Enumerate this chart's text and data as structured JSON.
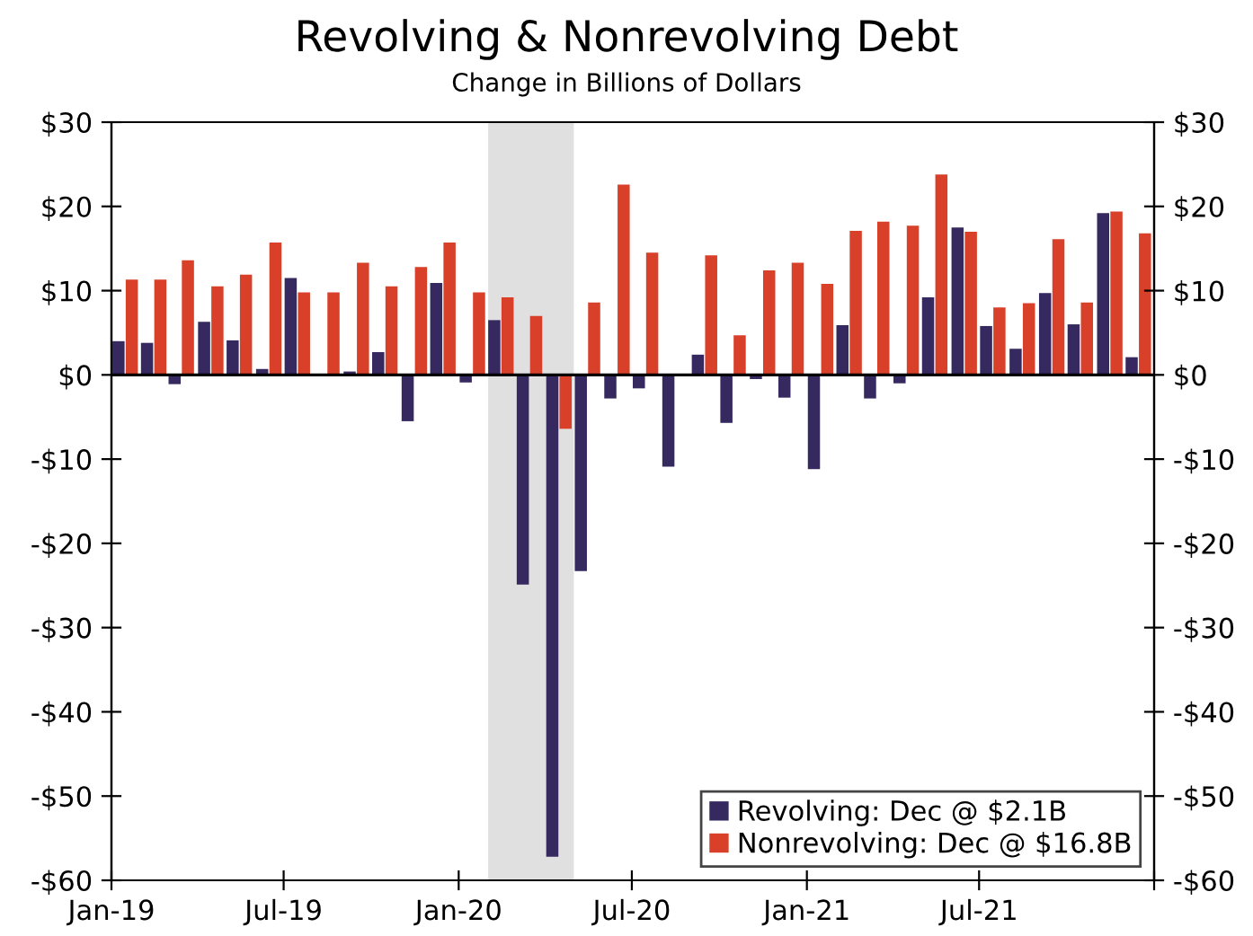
{
  "chart_data": {
    "type": "bar",
    "title": "Revolving & Nonrevolving Debt",
    "subtitle": "Change in Billions of Dollars",
    "x": [
      "2019-01-16",
      "2019-02-15",
      "2019-03-16",
      "2019-04-16",
      "2019-05-16",
      "2019-06-16",
      "2019-07-16",
      "2019-08-16",
      "2019-09-16",
      "2019-10-16",
      "2019-11-16",
      "2019-12-16",
      "2020-01-16",
      "2020-02-15",
      "2020-03-16",
      "2020-04-16",
      "2020-05-16",
      "2020-06-16",
      "2020-07-16",
      "2020-08-16",
      "2020-09-16",
      "2020-10-16",
      "2020-11-16",
      "2020-12-16",
      "2021-01-16",
      "2021-02-15",
      "2021-03-16",
      "2021-04-16",
      "2021-05-16",
      "2021-06-16",
      "2021-07-16",
      "2021-08-16",
      "2021-09-16",
      "2021-10-16",
      "2021-11-16",
      "2021-12-16"
    ],
    "series": [
      {
        "name": "Revolving: Dec @ $2.1B",
        "color": "#35295f",
        "values": [
          4.0,
          3.8,
          -1.1,
          6.3,
          4.1,
          0.7,
          11.5,
          0.1,
          0.4,
          2.7,
          -5.5,
          10.9,
          -0.9,
          6.5,
          -24.9,
          -57.2,
          -23.3,
          -2.8,
          -1.6,
          -10.9,
          2.4,
          -5.7,
          -0.5,
          -2.7,
          -11.2,
          5.9,
          -2.8,
          -1.0,
          9.2,
          17.5,
          5.8,
          3.1,
          9.7,
          6.0,
          19.2,
          2.1
        ]
      },
      {
        "name": "Nonrevolving: Dec @ $16.8B",
        "color": "#d9402a",
        "values": [
          11.3,
          11.3,
          13.6,
          10.5,
          11.9,
          15.7,
          9.8,
          9.8,
          13.3,
          10.5,
          12.8,
          15.7,
          9.8,
          9.2,
          7.0,
          -6.4,
          8.6,
          22.6,
          14.5,
          0.0,
          14.2,
          4.7,
          12.4,
          13.3,
          10.8,
          17.1,
          18.2,
          17.7,
          23.8,
          17.0,
          8.0,
          8.5,
          16.1,
          8.6,
          19.4,
          16.8
        ]
      }
    ],
    "xlim": [
      "2019-01",
      "2022-01"
    ],
    "xticks": [
      {
        "value": "2019-01",
        "label": "Jan-19"
      },
      {
        "value": "2019-07",
        "label": "Jul-19"
      },
      {
        "value": "2020-01",
        "label": "Jan-20"
      },
      {
        "value": "2020-07",
        "label": "Jul-20"
      },
      {
        "value": "2021-01",
        "label": "Jan-21"
      },
      {
        "value": "2021-07",
        "label": "Jul-21"
      },
      {
        "value": "2022-01",
        "label": null
      }
    ],
    "ylim": [
      -60,
      30
    ],
    "yticks": [
      {
        "value": -60,
        "label": "-$60"
      },
      {
        "value": -50,
        "label": "-$50"
      },
      {
        "value": -40,
        "label": "-$40"
      },
      {
        "value": -30,
        "label": "-$30"
      },
      {
        "value": -20,
        "label": "-$20"
      },
      {
        "value": -10,
        "label": "-$10"
      },
      {
        "value": 0,
        "label": "$0"
      },
      {
        "value": 10,
        "label": "$10"
      },
      {
        "value": 20,
        "label": "$20"
      },
      {
        "value": 30,
        "label": "$30"
      }
    ],
    "y2lim": [
      -60,
      30
    ],
    "y2ticks": [
      {
        "value": -60,
        "label": "-$60"
      },
      {
        "value": -50,
        "label": "-$50"
      },
      {
        "value": -40,
        "label": "-$40"
      },
      {
        "value": -30,
        "label": "-$30"
      },
      {
        "value": -20,
        "label": "-$20"
      },
      {
        "value": -10,
        "label": "-$10"
      },
      {
        "value": 0,
        "label": "$0"
      },
      {
        "value": 10,
        "label": "$10"
      },
      {
        "value": 20,
        "label": "$20"
      },
      {
        "value": 30,
        "label": "$30"
      }
    ],
    "ref_lines": [
      {
        "axis": "y",
        "value": 0,
        "color": "#000000"
      }
    ],
    "bands": [
      {
        "axis": "x",
        "from": "2020-02",
        "to": "2020-05",
        "color": "#e0e0e0"
      }
    ],
    "legend": "bottom right"
  }
}
